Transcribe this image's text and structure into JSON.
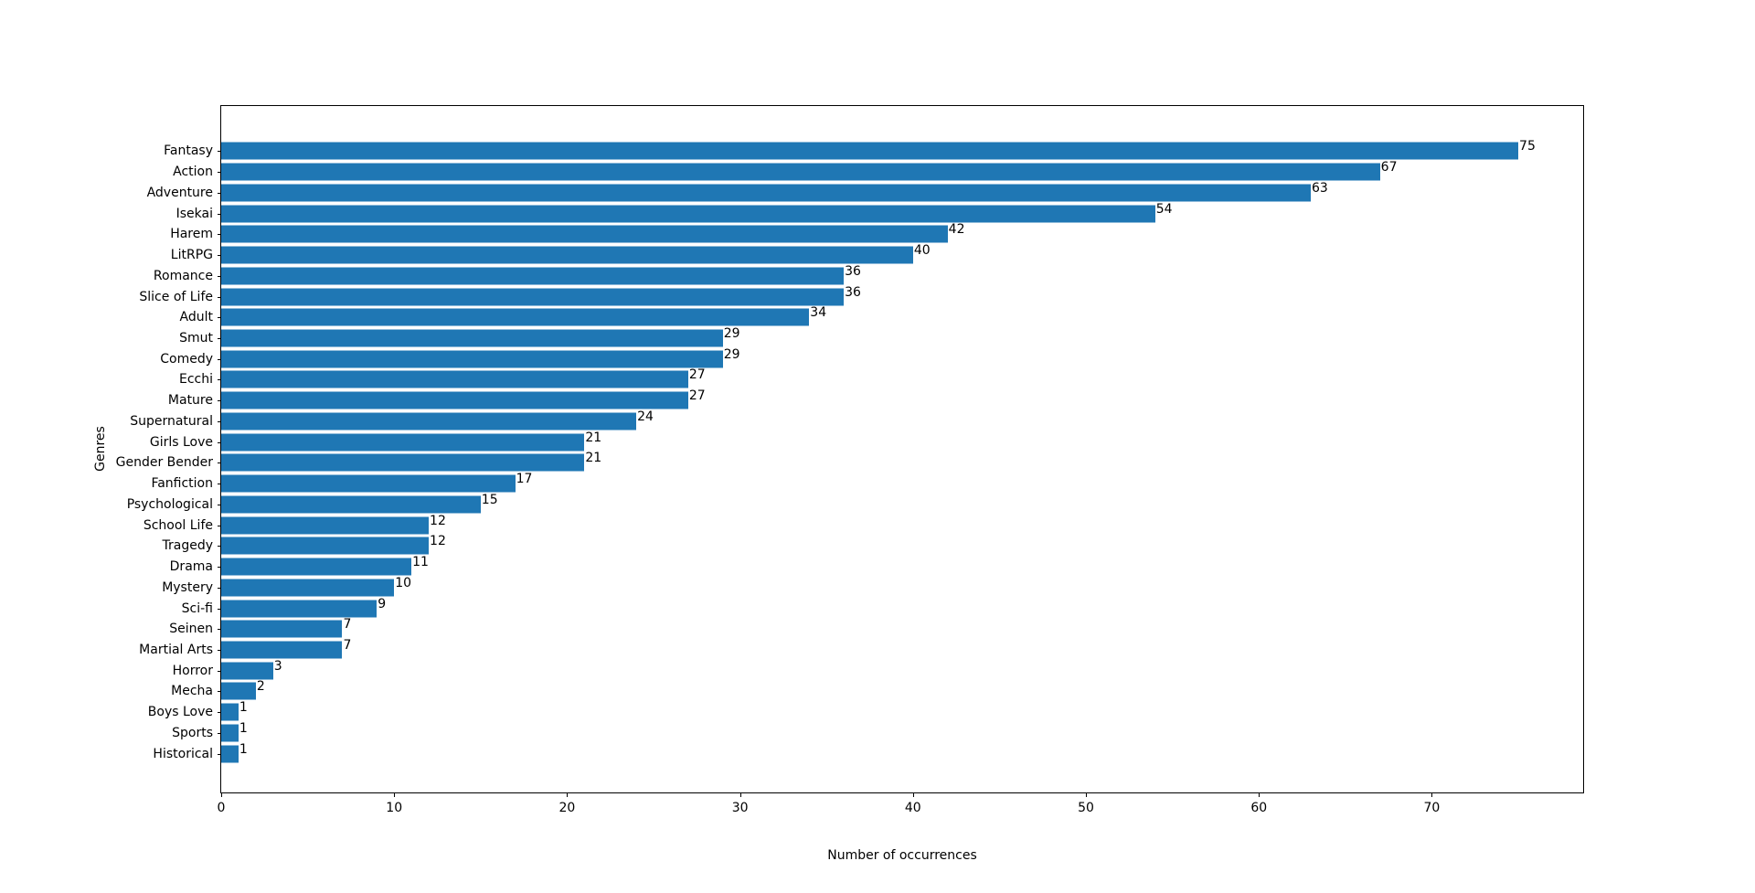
{
  "chart_data": {
    "type": "bar",
    "orientation": "horizontal",
    "title": "",
    "xlabel": "Number of occurrences",
    "ylabel": "Genres",
    "categories": [
      "Fantasy",
      "Action",
      "Adventure",
      "Isekai",
      "Harem",
      "LitRPG",
      "Romance",
      "Slice of Life",
      "Adult",
      "Smut",
      "Comedy",
      "Ecchi",
      "Mature",
      "Supernatural",
      "Girls Love",
      "Gender Bender",
      "Fanfiction",
      "Psychological",
      "School Life",
      "Tragedy",
      "Drama",
      "Mystery",
      "Sci-fi",
      "Seinen",
      "Martial Arts",
      "Horror",
      "Mecha",
      "Boys Love",
      "Sports",
      "Historical"
    ],
    "values": [
      75,
      67,
      63,
      54,
      42,
      40,
      36,
      36,
      34,
      29,
      29,
      27,
      27,
      24,
      21,
      21,
      17,
      15,
      12,
      12,
      11,
      10,
      9,
      7,
      7,
      3,
      2,
      1,
      1,
      1
    ],
    "bar_labels": [
      "75",
      "67",
      "63",
      "54",
      "42",
      "40",
      "36",
      "36",
      "34",
      "29",
      "29",
      "27",
      "27",
      "24",
      "21",
      "21",
      "17",
      "15",
      "12",
      "12",
      "11",
      "10",
      "9",
      "7",
      "7",
      "3",
      "2",
      "1",
      "1",
      "1"
    ],
    "xticks": [
      0,
      10,
      20,
      30,
      40,
      50,
      60,
      70
    ],
    "xlim": [
      0,
      78.75
    ],
    "grid": false,
    "legend": null,
    "bar_color": "#1f77b4",
    "text_color": "#000000"
  }
}
